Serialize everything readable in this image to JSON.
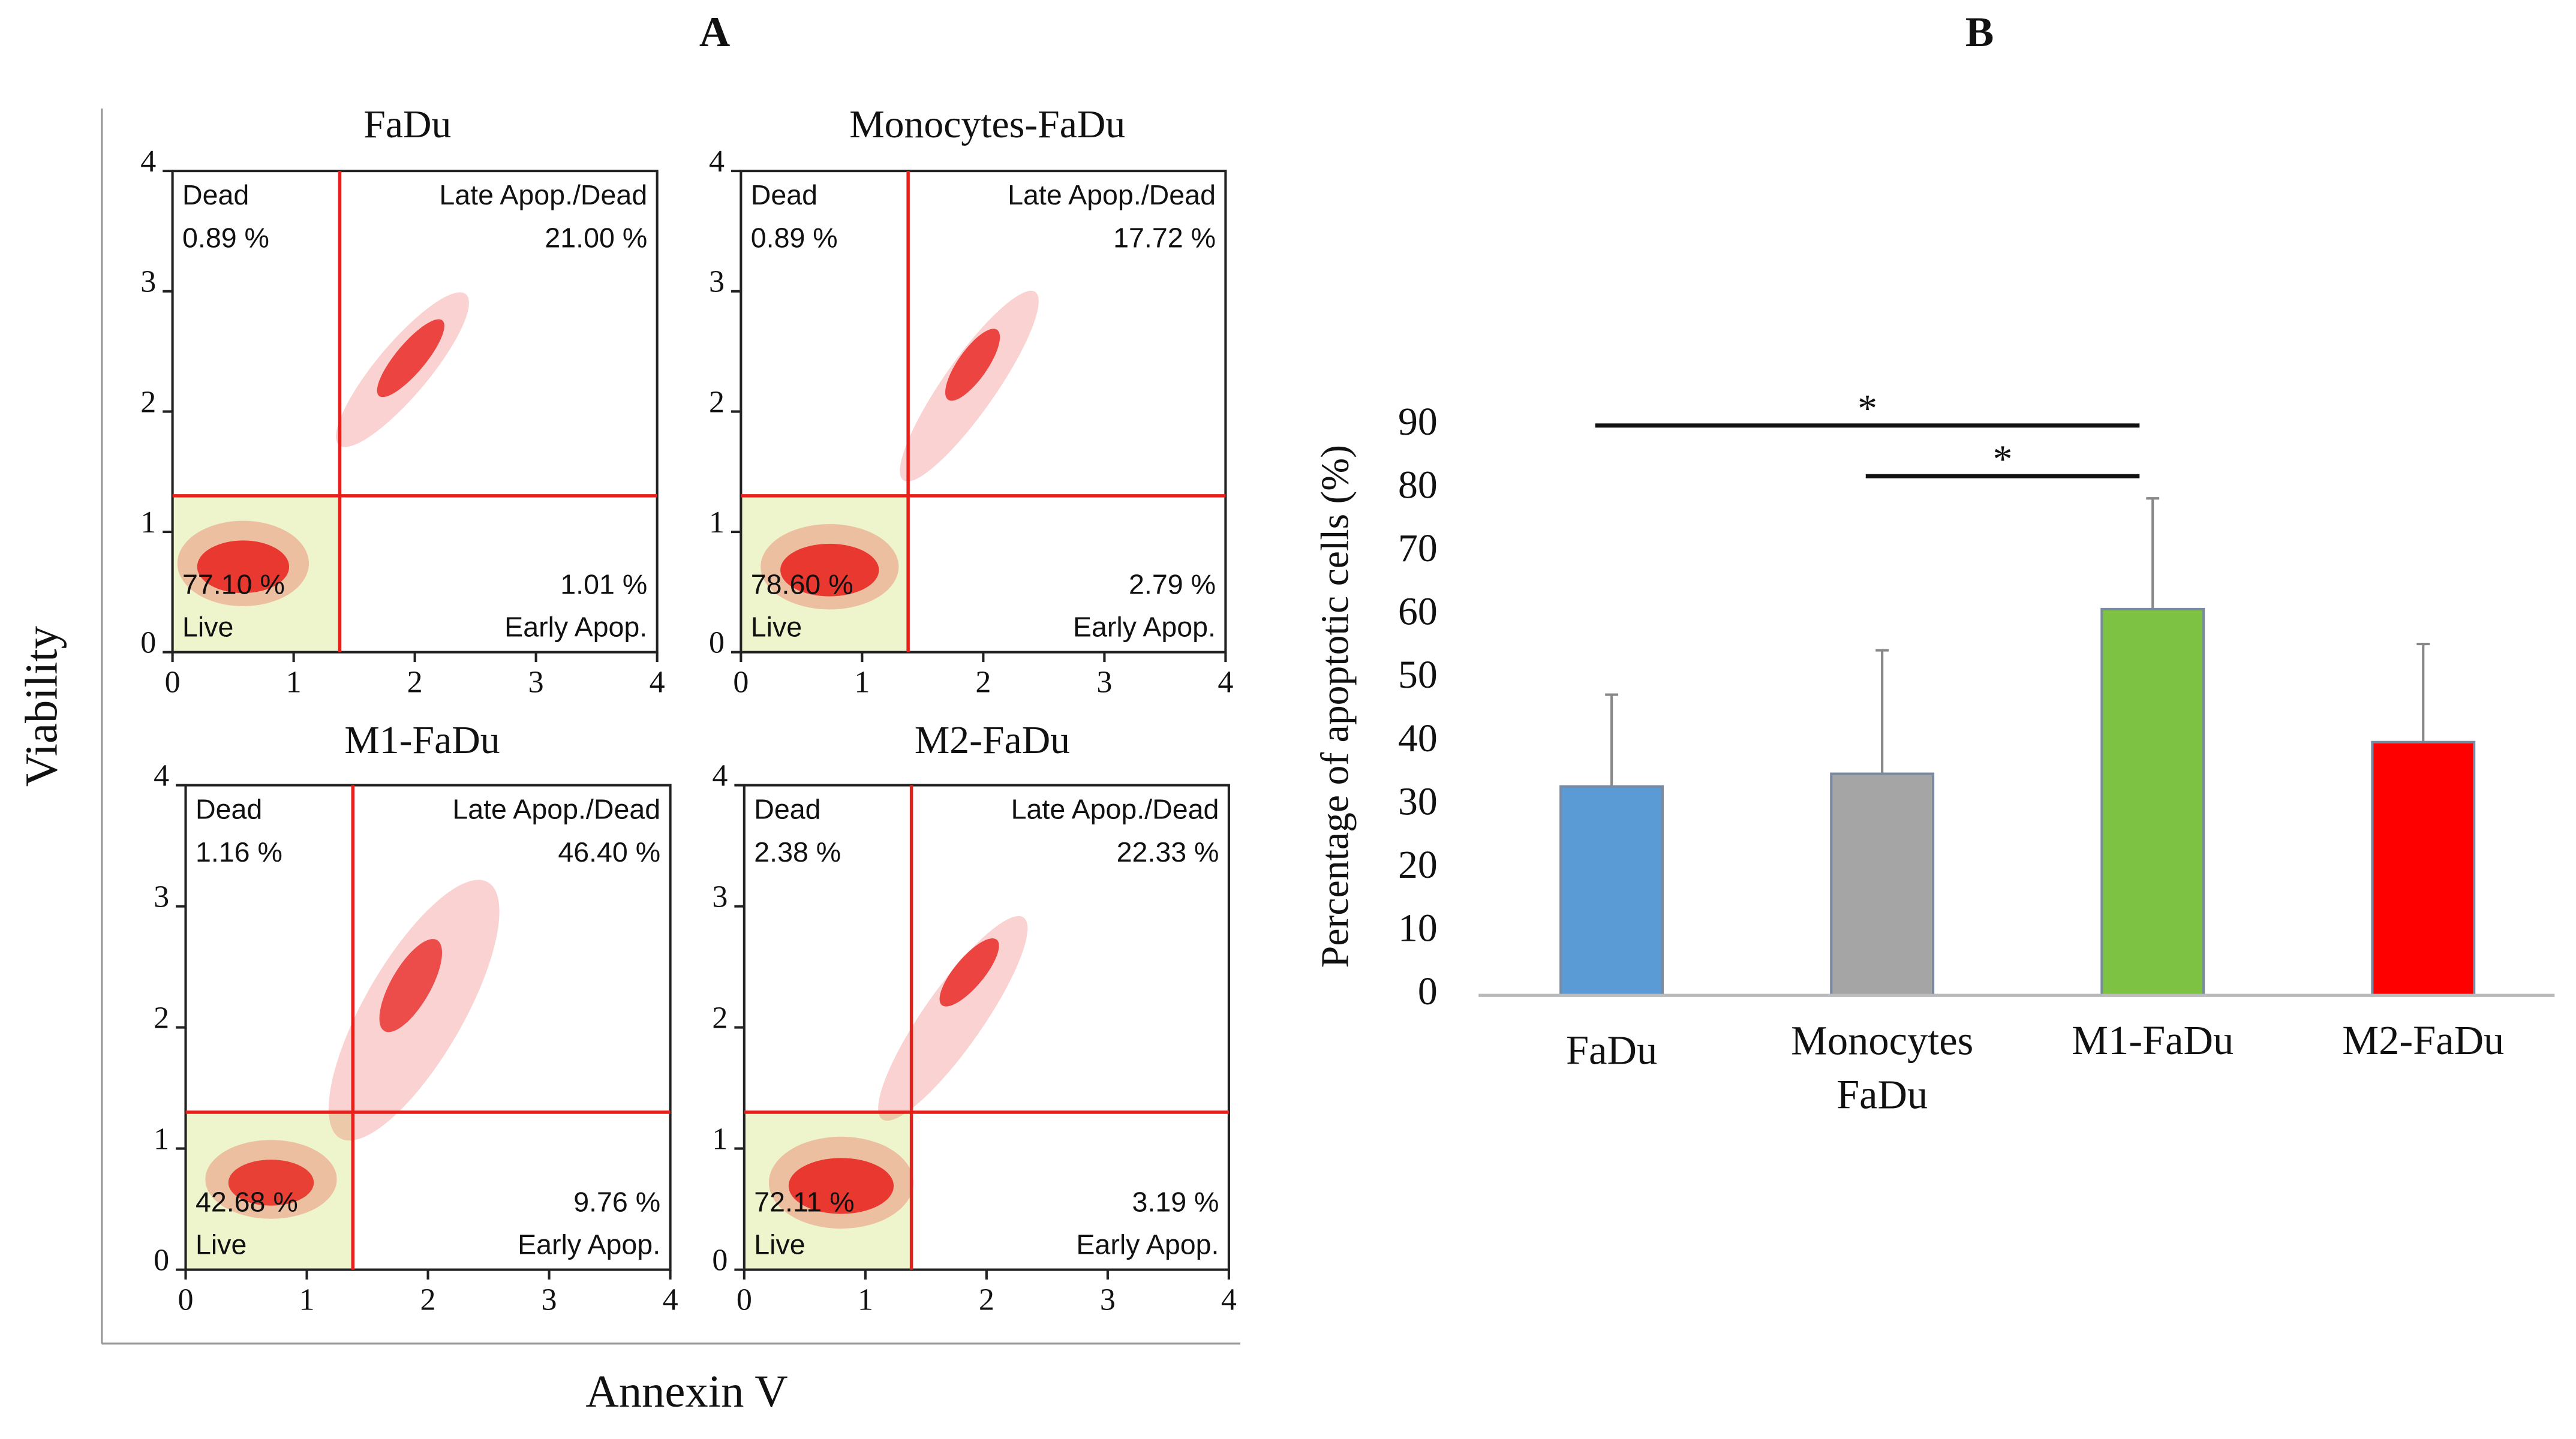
{
  "figure": {
    "panels": [
      "A",
      "B"
    ],
    "xlabel": "Annexin V",
    "ylabel": "Viability"
  },
  "chart_data": [
    {
      "type": "scatter",
      "title": "FaDu",
      "xlim": [
        0,
        4
      ],
      "ylim": [
        0,
        4
      ],
      "xticks": [
        0,
        1,
        2,
        3,
        4
      ],
      "yticks": [
        0,
        1,
        2,
        3,
        4
      ],
      "gate": {
        "x": 1.38,
        "y": 1.3
      },
      "quadrants": [
        "Dead",
        "Late Apop./Dead",
        "Early Apop.",
        "Live"
      ],
      "values": [
        0.89,
        21.0,
        1.01,
        77.1
      ],
      "value_labels": [
        "0.89 %",
        "21.00 %",
        "1.01 %",
        "77.10 %"
      ],
      "color": "#e8201c"
    },
    {
      "type": "scatter",
      "title": "Monocytes-FaDu",
      "xlim": [
        0,
        4
      ],
      "ylim": [
        0,
        4
      ],
      "xticks": [
        0,
        1,
        2,
        3,
        4
      ],
      "yticks": [
        0,
        1,
        2,
        3,
        4
      ],
      "gate": {
        "x": 1.38,
        "y": 1.3
      },
      "quadrants": [
        "Dead",
        "Late Apop./Dead",
        "Early Apop.",
        "Live"
      ],
      "values": [
        0.89,
        17.72,
        2.79,
        78.6
      ],
      "value_labels": [
        "0.89 %",
        "17.72 %",
        "2.79 %",
        "78.60 %"
      ],
      "color": "#e8201c"
    },
    {
      "type": "scatter",
      "title": "M1-FaDu",
      "xlim": [
        0,
        4
      ],
      "ylim": [
        0,
        4
      ],
      "xticks": [
        0,
        1,
        2,
        3,
        4
      ],
      "yticks": [
        0,
        1,
        2,
        3,
        4
      ],
      "gate": {
        "x": 1.38,
        "y": 1.3
      },
      "quadrants": [
        "Dead",
        "Late Apop./Dead",
        "Early Apop.",
        "Live"
      ],
      "values": [
        1.16,
        46.4,
        9.76,
        42.68
      ],
      "value_labels": [
        "1.16 %",
        "46.40 %",
        "9.76 %",
        "42.68 %"
      ],
      "color": "#e8201c"
    },
    {
      "type": "scatter",
      "title": "M2-FaDu",
      "xlim": [
        0,
        4
      ],
      "ylim": [
        0,
        4
      ],
      "xticks": [
        0,
        1,
        2,
        3,
        4
      ],
      "yticks": [
        0,
        1,
        2,
        3,
        4
      ],
      "gate": {
        "x": 1.38,
        "y": 1.3
      },
      "quadrants": [
        "Dead",
        "Late Apop./Dead",
        "Early Apop.",
        "Live"
      ],
      "values": [
        2.38,
        22.33,
        3.19,
        72.11
      ],
      "value_labels": [
        "2.38 %",
        "22.33 %",
        "3.19 %",
        "72.11 %"
      ],
      "color": "#e8201c"
    },
    {
      "type": "bar",
      "ylabel": "Percentage of apoptotic cells (%)",
      "categories": [
        "FaDu",
        "Monocytes FaDu",
        "M1-FaDu",
        "M2-FaDu"
      ],
      "values": [
        33,
        35,
        61,
        40
      ],
      "errors": [
        14.5,
        19.5,
        17.5,
        15.5
      ],
      "colors": [
        "#5b9bd5",
        "#a5a5a5",
        "#7dc242",
        "#ff0000"
      ],
      "ylim": [
        0,
        90
      ],
      "yticks": [
        0,
        10,
        20,
        30,
        40,
        50,
        60,
        70,
        80,
        90
      ],
      "significance": [
        {
          "from": "FaDu",
          "to": "M1-FaDu",
          "y": 90,
          "label": "*"
        },
        {
          "from": "Monocytes FaDu",
          "to": "M1-FaDu",
          "y": 82,
          "label": "*"
        }
      ]
    }
  ]
}
